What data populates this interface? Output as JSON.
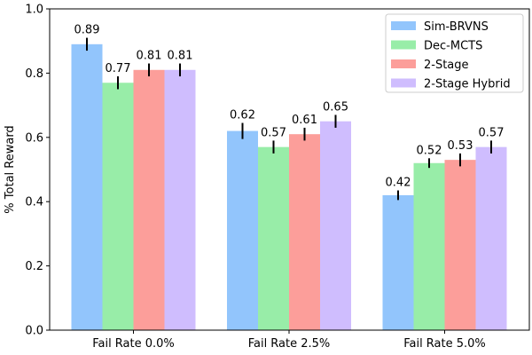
{
  "chart_data": {
    "type": "bar",
    "ylabel": "% Total Reward",
    "xlabel": "",
    "title": "",
    "ylim": [
      0.0,
      1.0
    ],
    "yticks": [
      "0.0",
      "0.2",
      "0.4",
      "0.6",
      "0.8",
      "1.0"
    ],
    "yticks_values": [
      0.0,
      0.2,
      0.4,
      0.6,
      0.8,
      1.0
    ],
    "categories": [
      "Fail Rate 0.0%",
      "Fail Rate 2.5%",
      "Fail Rate 5.0%"
    ],
    "legend_position": "top-right",
    "grid": false,
    "series": [
      {
        "name": "Sim-BRVNS",
        "color": "#92c5fc",
        "values": [
          0.89,
          0.62,
          0.42
        ],
        "labels": [
          "0.89",
          "0.62",
          "0.42"
        ],
        "errors": [
          0.02,
          0.025,
          0.015
        ]
      },
      {
        "name": "Dec-MCTS",
        "color": "#98eda8",
        "values": [
          0.77,
          0.57,
          0.52
        ],
        "labels": [
          "0.77",
          "0.57",
          "0.52"
        ],
        "errors": [
          0.02,
          0.02,
          0.015
        ]
      },
      {
        "name": "2-Stage",
        "color": "#fc9e9a",
        "values": [
          0.81,
          0.61,
          0.53
        ],
        "labels": [
          "0.81",
          "0.61",
          "0.53"
        ],
        "errors": [
          0.02,
          0.02,
          0.02
        ]
      },
      {
        "name": "2-Stage Hybrid",
        "color": "#cfbdfe",
        "values": [
          0.81,
          0.65,
          0.57
        ],
        "labels": [
          "0.81",
          "0.65",
          "0.57"
        ],
        "errors": [
          0.02,
          0.02,
          0.02
        ]
      }
    ]
  }
}
